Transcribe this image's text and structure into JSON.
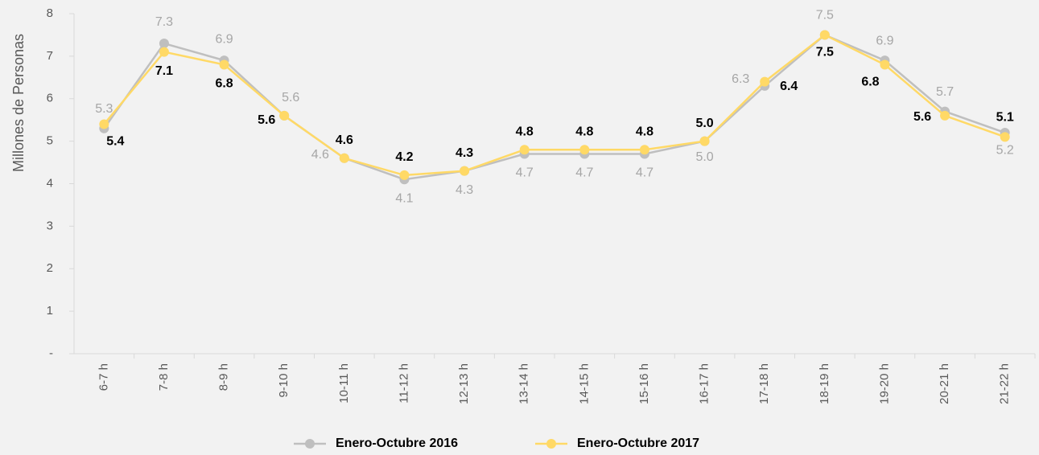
{
  "chart_data": {
    "type": "line",
    "ylabel": "Millones de Personas",
    "categories": [
      "6-7 h",
      "7-8 h",
      "8-9 h",
      "9-10 h",
      "10-11 h",
      "11-12 h",
      "12-13 h",
      "13-14 h",
      "14-15 h",
      "15-16 h",
      "16-17 h",
      "17-18 h",
      "18-19 h",
      "19-20 h",
      "20-21 h",
      "21-22 h"
    ],
    "series": [
      {
        "name": "Enero-Octubre 2016",
        "color": "#bfbfbf",
        "label_color": "#a6a6a6",
        "values": [
          5.3,
          7.3,
          6.9,
          5.6,
          4.6,
          4.1,
          4.3,
          4.7,
          4.7,
          4.7,
          5.0,
          6.3,
          7.5,
          6.9,
          5.7,
          5.2
        ],
        "value_labels": [
          "5.3",
          "7.3",
          "6.9",
          "5.6",
          "4.6",
          "4.1",
          "4.3",
          "4.7",
          "4.7",
          "4.7",
          "5.0",
          "6.3",
          "7.5",
          "6.9",
          "5.7",
          "5.2"
        ]
      },
      {
        "name": "Enero-Octubre 2017",
        "color": "#ffd966",
        "label_color": "#000000",
        "values": [
          5.4,
          7.1,
          6.8,
          5.6,
          4.6,
          4.2,
          4.3,
          4.8,
          4.8,
          4.8,
          5.0,
          6.4,
          7.5,
          6.8,
          5.6,
          5.1
        ],
        "value_labels": [
          "5.4",
          "7.1",
          "6.8",
          "5.6",
          "4.6",
          "4.2",
          "4.3",
          "4.8",
          "4.8",
          "4.8",
          "5.0",
          "6.4",
          "7.5",
          "6.8",
          "5.6",
          "5.1"
        ]
      }
    ],
    "ylim": [
      0,
      8
    ],
    "yticks": [
      {
        "value": 0,
        "label": "-"
      },
      1,
      2,
      3,
      4,
      5,
      6,
      7,
      8
    ],
    "legend": "bottom"
  }
}
